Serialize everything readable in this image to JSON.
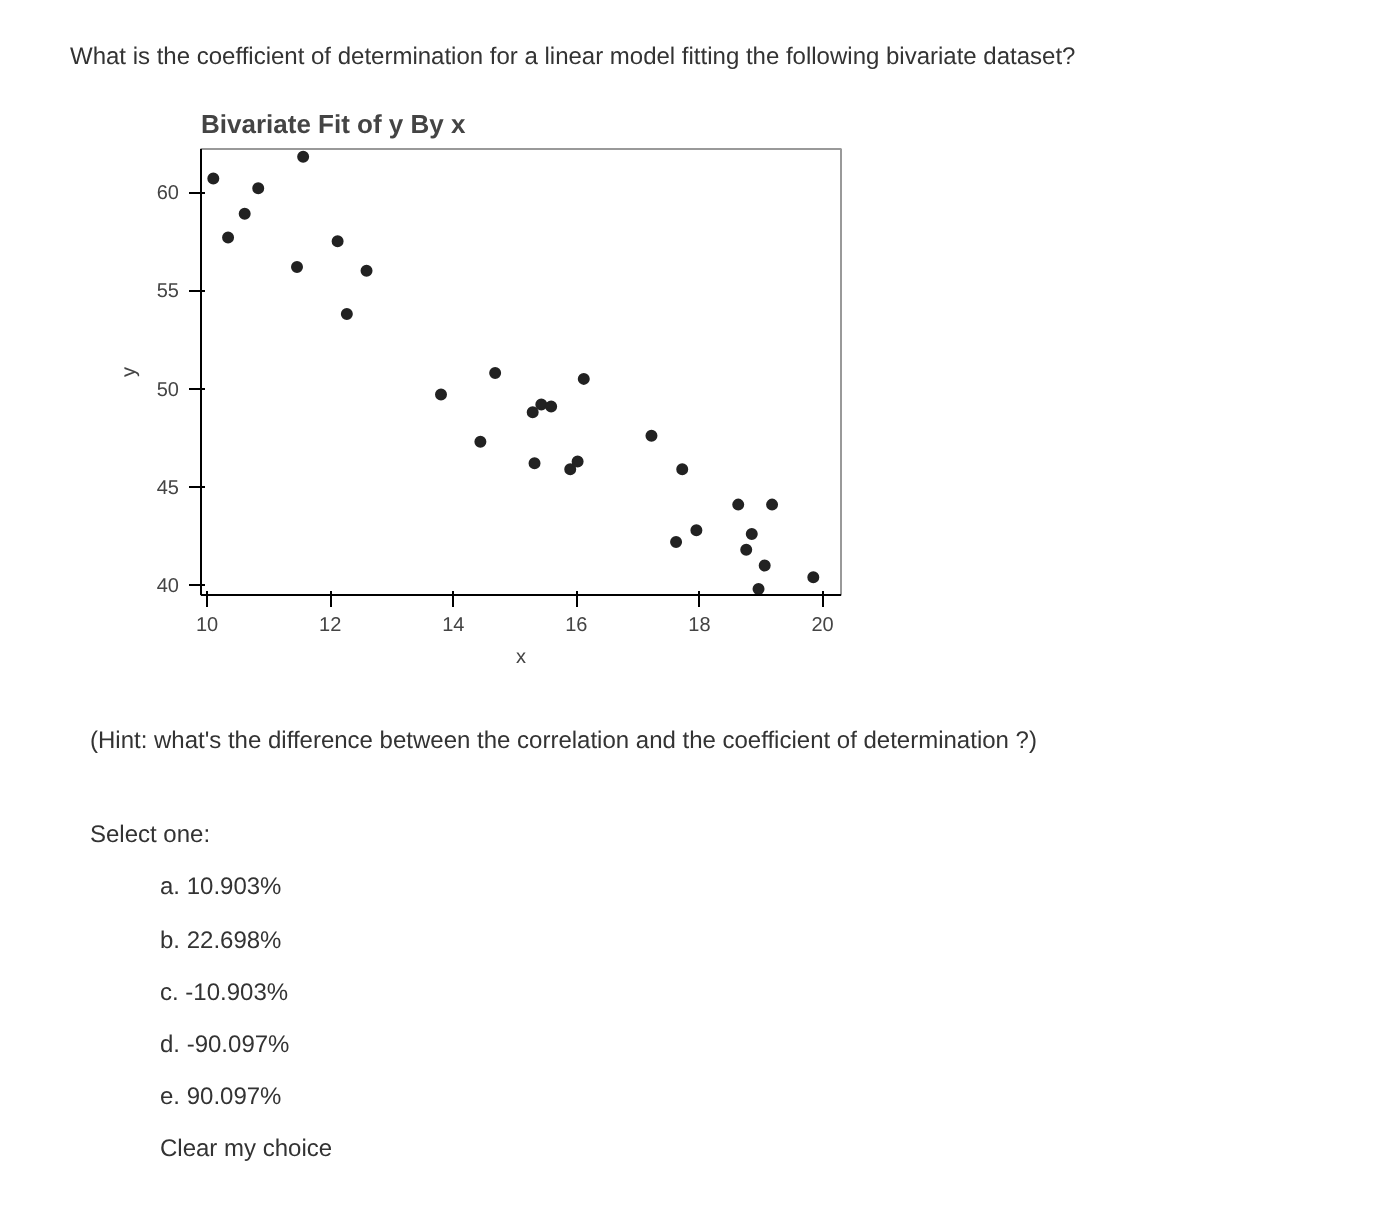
{
  "chart_data": {
    "type": "scatter",
    "title": "Bivariate Fit of y By x",
    "xlabel": "x",
    "ylabel": "y",
    "x": [
      10.1,
      10.34,
      10.61,
      10.83,
      11.56,
      11.46,
      12.12,
      12.27,
      12.59,
      13.8,
      14.68,
      14.44,
      15.29,
      15.43,
      15.59,
      16.12,
      15.32,
      15.9,
      16.02,
      17.22,
      17.72,
      17.62,
      17.95,
      18.63,
      19.18,
      18.85,
      18.76,
      19.06,
      18.96,
      19.85
    ],
    "series": [
      {
        "color": "#222222",
        "values": [
          60.7,
          57.7,
          58.9,
          60.2,
          61.8,
          56.2,
          57.5,
          53.8,
          56.0,
          49.7,
          50.8,
          47.3,
          48.8,
          49.2,
          49.1,
          50.5,
          46.2,
          45.9,
          46.3,
          47.6,
          45.9,
          42.2,
          42.8,
          44.1,
          44.1,
          42.6,
          41.8,
          41.0,
          39.8,
          40.4
        ]
      }
    ],
    "xlim": [
      9.9,
      20.3
    ],
    "ylim": [
      39.5,
      62.2
    ],
    "xticks": [
      10,
      12,
      14,
      16,
      18,
      20
    ],
    "yticks": [
      40,
      45,
      50,
      55,
      60
    ],
    "grid": false,
    "marker": "circle",
    "annotations": [
      "What is the coefficient of determination for a linear model fitting the following bivariate dataset?",
      "(Hint: what's the difference between the correlation and the coefficient of determination ?)",
      "Select one:",
      "a. 10.903%",
      "b. 22.698%",
      "c. -10.903%",
      "d. -90.097%",
      "e. 90.097%",
      "Clear my choice"
    ]
  }
}
